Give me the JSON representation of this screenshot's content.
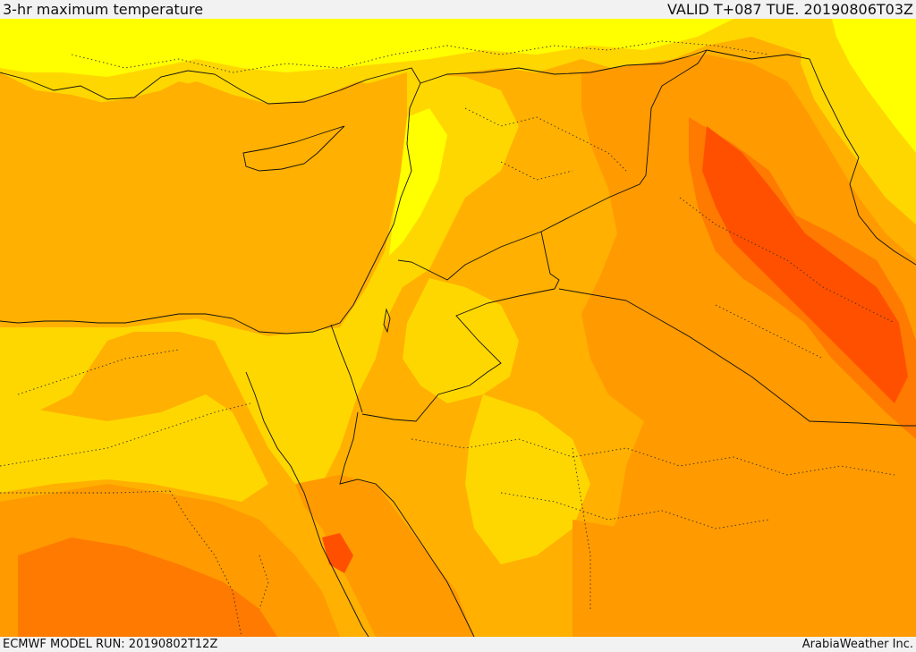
{
  "header": {
    "title": "3-hr maximum temperature",
    "valid": "VALID T+087 TUE. 20190806T03Z"
  },
  "footer": {
    "model_run": "ECMWF MODEL RUN: 20190802T12Z",
    "provider": "ArabiaWeather Inc."
  },
  "colors": {
    "yellow": "#ffff00",
    "light_yellow": "#ffe500",
    "gold": "#ffd700",
    "amber": "#ffb000",
    "orange": "#ff9a00",
    "dark_orange": "#ff7a00",
    "red_orange": "#ff5000"
  },
  "icons": {
    "map": "temperature-map"
  }
}
